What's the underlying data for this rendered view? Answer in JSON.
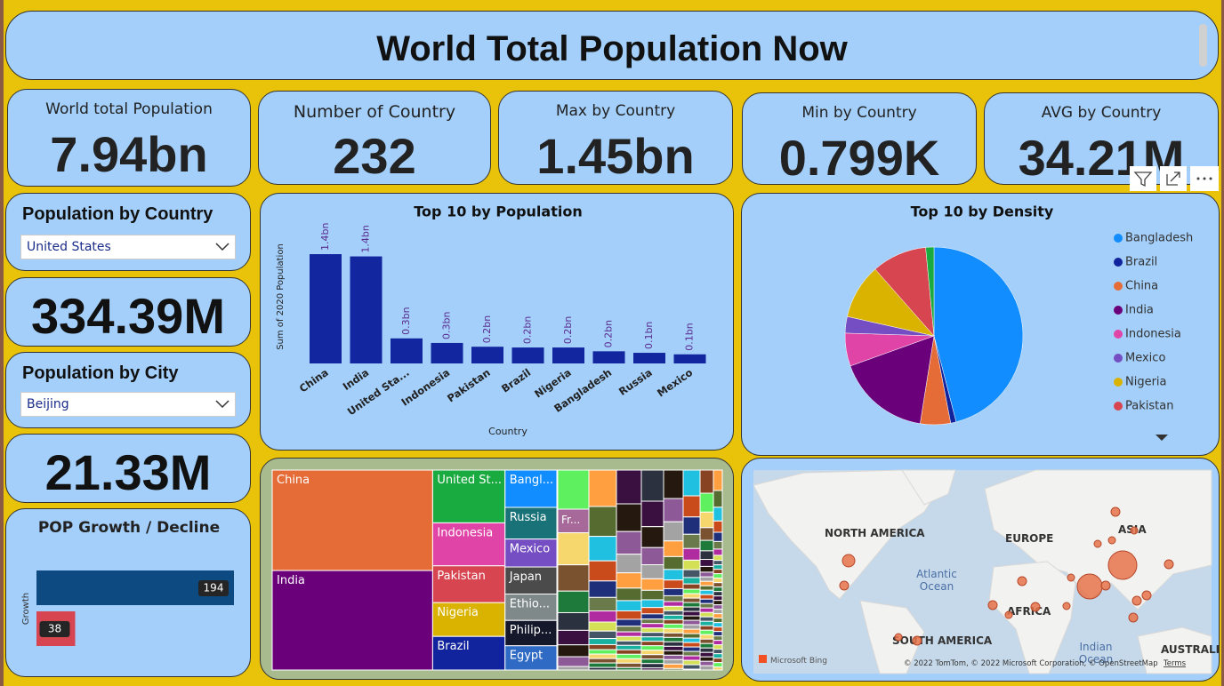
{
  "header": {
    "title": "World Total Population Now"
  },
  "kpis": [
    {
      "label": "World total Population",
      "value": "7.94bn"
    },
    {
      "label": "Number of Country",
      "value": "232"
    },
    {
      "label": "Max by Country",
      "value": "1.45bn"
    },
    {
      "label": "Min by Country",
      "value": "0.799K"
    },
    {
      "label": "AVG by Country",
      "value": "34.21M"
    }
  ],
  "slicers": [
    {
      "title": "Population by Country",
      "selected": "United States",
      "card": "334.39M"
    },
    {
      "title": "Population by City",
      "selected": "Beijing",
      "card": "21.33M"
    }
  ],
  "chart_data": [
    {
      "type": "bar",
      "title": "Top 10 by Population",
      "xlabel": "Country",
      "ylabel": "Sum of 2020 Population",
      "categories": [
        "China",
        "India",
        "United Sta...",
        "Indonesia",
        "Pakistan",
        "Brazil",
        "Nigeria",
        "Bangladesh",
        "Russia",
        "Mexico"
      ],
      "values": [
        1.44,
        1.41,
        0.33,
        0.27,
        0.22,
        0.21,
        0.21,
        0.16,
        0.14,
        0.12
      ],
      "value_labels": [
        "1.4bn",
        "1.4bn",
        "0.3bn",
        "0.3bn",
        "0.2bn",
        "0.2bn",
        "0.2bn",
        "0.2bn",
        "0.1bn",
        "0.1bn"
      ],
      "color": "#1226a0"
    },
    {
      "type": "pie",
      "title": "Top 10 by Density",
      "categories": [
        "Bangladesh",
        "Brazil",
        "China",
        "India",
        "Indonesia",
        "Mexico",
        "Nigeria",
        "Pakistan",
        null
      ],
      "values": [
        46,
        1,
        5.5,
        17,
        6,
        3,
        10,
        10,
        1.5
      ],
      "colors": [
        "#118dff",
        "#12239e",
        "#e66c37",
        "#6b007b",
        "#e044a7",
        "#744ec2",
        "#d9b300",
        "#d64550",
        "#1aab40"
      ]
    },
    {
      "type": "treemap",
      "categories": [
        "China",
        "India",
        "United St...",
        "Indonesia",
        "Pakistan",
        "Nigeria",
        "Brazil",
        "Bangl...",
        "Russia",
        "Mexico",
        "Japan",
        "Ethio...",
        "Philip...",
        "Egypt",
        "Fr..."
      ],
      "values": [
        1426,
        1412,
        338,
        275,
        236,
        216,
        215,
        171,
        145,
        128,
        124,
        121,
        116,
        111,
        65
      ],
      "colors": [
        "#e66c37",
        "#6b007b",
        "#1aab40",
        "#e044a7",
        "#d64550",
        "#d9b300",
        "#12239e",
        "#118dff",
        "#197278",
        "#744ec2",
        "#4b4b4b",
        "#7f898a",
        "#15172b",
        "#2f6bc4",
        "#a66999"
      ]
    },
    {
      "type": "hbar",
      "title": "POP Growth / Decline",
      "ylabel": "Growth",
      "categories": [
        null,
        null
      ],
      "values": [
        194,
        38
      ],
      "colors": [
        "#0d4a82",
        "#d64550"
      ]
    }
  ],
  "map": {
    "labels": [
      "NORTH AMERICA",
      "EUROPE",
      "ASIA",
      "AFRICA",
      "SOUTH AMERICA",
      "AUSTRALIA",
      "Atlantic",
      "Ocean",
      "Indian",
      "Ocean"
    ],
    "logo": "Microsoft Bing",
    "attribution": "© 2022 TomTom, © 2022 Microsoft Corporation, © OpenStreetMap",
    "terms": "Terms"
  }
}
